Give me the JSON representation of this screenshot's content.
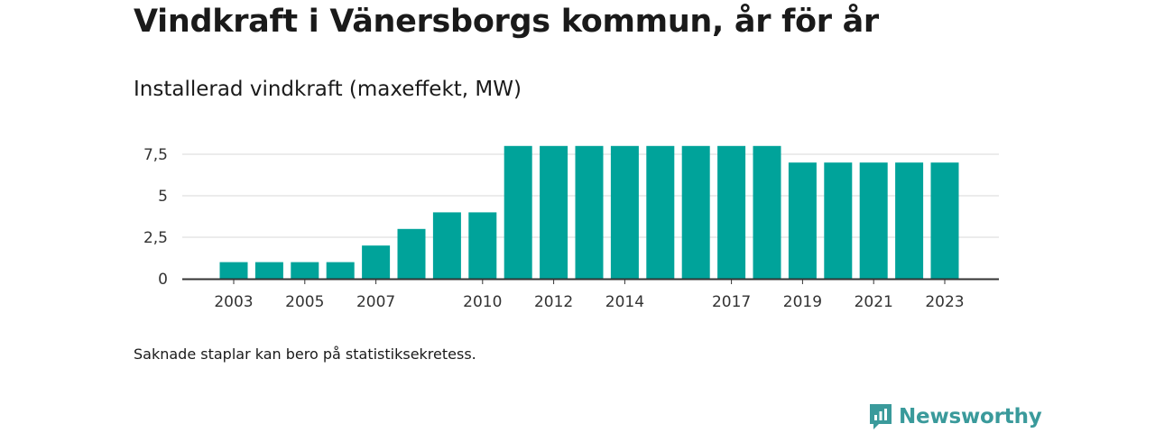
{
  "title": "Vindkraft i Vänersborgs kommun, år för år",
  "subtitle": "Installerad vindkraft (maxeffekt, MW)",
  "note": "Saknade staplar kan bero på statistiksekretess.",
  "brand": {
    "name": "Newsworthy",
    "logo_icon": "newsworthy-logo-icon",
    "color": "#3a9a9b"
  },
  "chart_data": {
    "type": "bar",
    "categories": [
      "2003",
      "2004",
      "2005",
      "2006",
      "2007",
      "2008",
      "2009",
      "2010",
      "2011",
      "2012",
      "2013",
      "2014",
      "2015",
      "2016",
      "2017",
      "2018",
      "2019",
      "2020",
      "2021",
      "2022",
      "2023"
    ],
    "values": [
      1,
      1,
      1,
      1,
      2,
      3,
      4,
      4,
      8,
      8,
      8,
      8,
      8,
      8,
      8,
      8,
      7,
      7,
      7,
      7,
      7
    ],
    "x_tick_labels": [
      "2003",
      "2005",
      "2007",
      "2010",
      "2012",
      "2014",
      "2017",
      "2019",
      "2021",
      "2023"
    ],
    "y_ticks": [
      0,
      2.5,
      5,
      7.5
    ],
    "y_tick_labels": [
      "0",
      "2,5",
      "5",
      "7,5"
    ],
    "ylim": [
      0,
      8
    ],
    "grid": true,
    "bar_color": "#00a39a"
  }
}
